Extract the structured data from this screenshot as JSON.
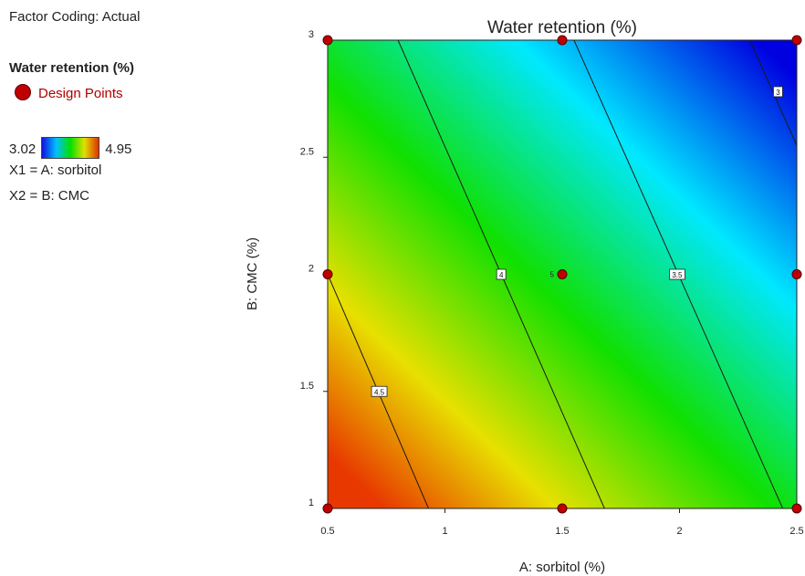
{
  "legend": {
    "factor_coding": "Factor Coding: Actual",
    "response": "Water retention (%)",
    "design_points": "Design Points",
    "scale_min": "3.02",
    "scale_max": "4.95",
    "x1": "X1 = A: sorbitol",
    "x2": "X2 = B: CMC"
  },
  "chart_data": {
    "type": "contour",
    "title": "Water retention (%)",
    "xlabel": "A: sorbitol (%)",
    "ylabel": "B: CMC (%)",
    "xlim": [
      0.5,
      2.5
    ],
    "ylim": [
      1,
      3
    ],
    "x_ticks": [
      "0.5",
      "1",
      "1.5",
      "2",
      "2.5"
    ],
    "y_ticks": [
      "1",
      "1.5",
      "2",
      "2.5",
      "3"
    ],
    "color_range": [
      3.02,
      4.95
    ],
    "colors": [
      "#1010e0",
      "#00c0ff",
      "#00e000",
      "#e0e000",
      "#e03000"
    ],
    "contours": [
      {
        "level": "4.5",
        "points": [
          [
            0.5,
            2.0
          ],
          [
            0.93,
            1.0
          ]
        ]
      },
      {
        "level": "4",
        "points": [
          [
            0.8,
            3.0
          ],
          [
            1.68,
            1.0
          ]
        ]
      },
      {
        "level": "3.5",
        "points": [
          [
            1.55,
            3.0
          ],
          [
            2.44,
            1.0
          ]
        ]
      },
      {
        "level": "3",
        "points": [
          [
            2.3,
            3.0
          ],
          [
            2.5,
            2.55
          ]
        ]
      }
    ],
    "contour_labels": [
      {
        "text": "4.5",
        "x": 0.72,
        "y": 1.5
      },
      {
        "text": "4",
        "x": 1.24,
        "y": 2.0
      },
      {
        "text": "3.5",
        "x": 1.99,
        "y": 2.0
      },
      {
        "text": "3",
        "x": 2.42,
        "y": 2.78
      }
    ],
    "design_points": [
      {
        "x": 0.5,
        "y": 3
      },
      {
        "x": 1.5,
        "y": 3
      },
      {
        "x": 2.5,
        "y": 3
      },
      {
        "x": 0.5,
        "y": 2
      },
      {
        "x": 1.5,
        "y": 2,
        "label": "5"
      },
      {
        "x": 2.5,
        "y": 2
      },
      {
        "x": 0.5,
        "y": 1
      },
      {
        "x": 1.5,
        "y": 1
      },
      {
        "x": 2.5,
        "y": 1
      }
    ]
  }
}
